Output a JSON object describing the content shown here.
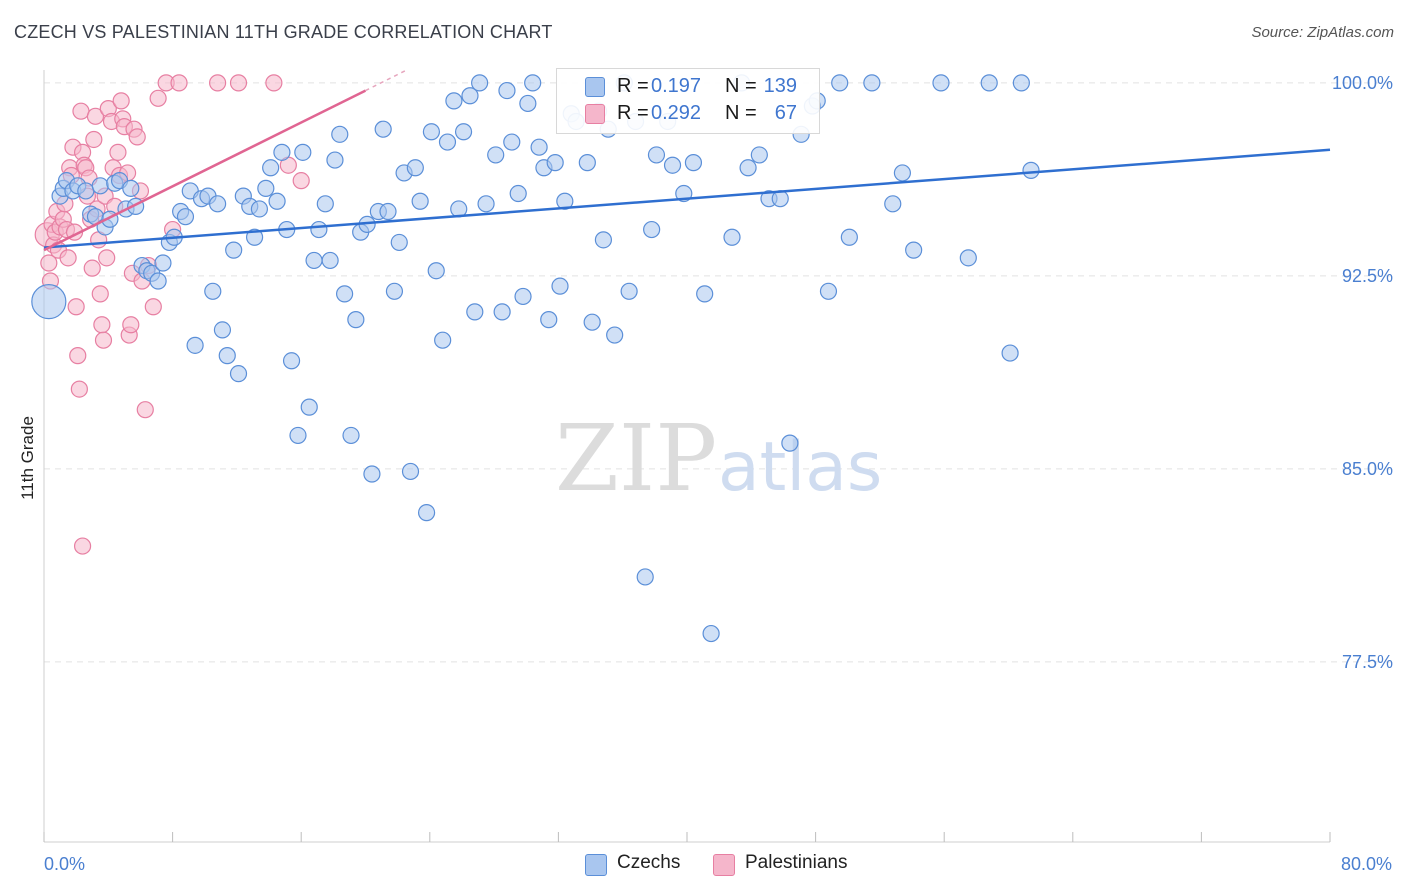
{
  "title": "CZECH VS PALESTINIAN 11TH GRADE CORRELATION CHART",
  "source": "Source: ZipAtlas.com",
  "watermark": {
    "zip": "ZIP",
    "atlas": "atlas"
  },
  "legend": {
    "czechs": {
      "r_label": "R =",
      "r_value": "0.197",
      "n_label": "N =",
      "n_value": "139"
    },
    "palestinians": {
      "r_label": "R =",
      "r_value": "0.292",
      "n_label": "N =",
      "n_value": "67"
    }
  },
  "bottom_legend": {
    "czechs": "Czechs",
    "palestinians": "Palestinians"
  },
  "colors": {
    "czech_fill": "#a9c6ef",
    "czech_stroke": "#5b8fd8",
    "czech_line": "#2f6fd0",
    "pal_fill": "#f5b6cb",
    "pal_stroke": "#e77fa2",
    "pal_line": "#e06592",
    "axis_text": "#4a7fd0",
    "grid": "#e2e2e2"
  },
  "chart_data": {
    "type": "scatter",
    "title": "CZECH VS PALESTINIAN 11TH GRADE CORRELATION CHART",
    "xlabel": "",
    "ylabel": "11th Grade",
    "xlim": [
      0,
      80
    ],
    "ylim": [
      70.5,
      100.5
    ],
    "x_tick_labels": [
      "0.0%",
      "80.0%"
    ],
    "y_ticks": [
      77.5,
      85.0,
      92.5,
      100.0
    ],
    "y_tick_labels": [
      "77.5%",
      "85.0%",
      "92.5%",
      "100.0%"
    ],
    "grid": true,
    "legend_position": "top-center",
    "series": [
      {
        "name": "Czechs",
        "r": 0.197,
        "n": 139,
        "trend": {
          "x": [
            0,
            80
          ],
          "y": [
            93.6,
            97.4
          ]
        },
        "points": [
          [
            0.3,
            91.5
          ],
          [
            1.0,
            95.6
          ],
          [
            1.2,
            95.9
          ],
          [
            1.4,
            96.2
          ],
          [
            1.8,
            95.8
          ],
          [
            2.1,
            96.0
          ],
          [
            2.6,
            95.8
          ],
          [
            2.9,
            94.9
          ],
          [
            3.2,
            94.8
          ],
          [
            3.5,
            96.0
          ],
          [
            3.8,
            94.4
          ],
          [
            4.1,
            94.7
          ],
          [
            4.4,
            96.1
          ],
          [
            4.7,
            96.2
          ],
          [
            5.1,
            95.1
          ],
          [
            5.4,
            95.9
          ],
          [
            5.7,
            95.2
          ],
          [
            6.1,
            92.9
          ],
          [
            6.4,
            92.7
          ],
          [
            6.7,
            92.6
          ],
          [
            7.1,
            92.3
          ],
          [
            7.4,
            93.0
          ],
          [
            7.8,
            93.8
          ],
          [
            8.1,
            94.0
          ],
          [
            8.5,
            95.0
          ],
          [
            8.8,
            94.8
          ],
          [
            9.1,
            95.8
          ],
          [
            9.4,
            89.8
          ],
          [
            9.8,
            95.5
          ],
          [
            10.2,
            95.6
          ],
          [
            10.5,
            91.9
          ],
          [
            10.8,
            95.3
          ],
          [
            11.1,
            90.4
          ],
          [
            11.4,
            89.4
          ],
          [
            11.8,
            93.5
          ],
          [
            12.1,
            88.7
          ],
          [
            12.4,
            95.6
          ],
          [
            12.8,
            95.2
          ],
          [
            13.1,
            94.0
          ],
          [
            13.4,
            95.1
          ],
          [
            13.8,
            95.9
          ],
          [
            14.1,
            96.7
          ],
          [
            14.5,
            95.4
          ],
          [
            14.8,
            97.3
          ],
          [
            15.1,
            94.3
          ],
          [
            15.4,
            89.2
          ],
          [
            15.8,
            86.3
          ],
          [
            16.1,
            97.3
          ],
          [
            16.5,
            87.4
          ],
          [
            16.8,
            93.1
          ],
          [
            17.1,
            94.3
          ],
          [
            17.5,
            95.3
          ],
          [
            17.8,
            93.1
          ],
          [
            18.1,
            97.0
          ],
          [
            18.4,
            98.0
          ],
          [
            18.7,
            91.8
          ],
          [
            19.1,
            86.3
          ],
          [
            19.4,
            90.8
          ],
          [
            19.7,
            94.2
          ],
          [
            20.1,
            94.5
          ],
          [
            20.4,
            84.8
          ],
          [
            20.8,
            95.0
          ],
          [
            21.1,
            98.2
          ],
          [
            21.4,
            95.0
          ],
          [
            21.8,
            91.9
          ],
          [
            22.1,
            93.8
          ],
          [
            22.4,
            96.5
          ],
          [
            22.8,
            84.9
          ],
          [
            23.1,
            96.7
          ],
          [
            23.4,
            95.4
          ],
          [
            23.8,
            83.3
          ],
          [
            24.1,
            98.1
          ],
          [
            24.4,
            92.7
          ],
          [
            24.8,
            90.0
          ],
          [
            25.1,
            97.7
          ],
          [
            25.5,
            99.3
          ],
          [
            25.8,
            95.1
          ],
          [
            26.1,
            98.1
          ],
          [
            26.5,
            99.5
          ],
          [
            26.8,
            91.1
          ],
          [
            27.1,
            100.0
          ],
          [
            27.5,
            95.3
          ],
          [
            28.1,
            97.2
          ],
          [
            28.5,
            91.1
          ],
          [
            28.8,
            99.7
          ],
          [
            29.1,
            97.7
          ],
          [
            29.5,
            95.7
          ],
          [
            29.8,
            91.7
          ],
          [
            30.1,
            99.2
          ],
          [
            30.4,
            100.0
          ],
          [
            30.8,
            97.5
          ],
          [
            31.1,
            96.7
          ],
          [
            31.4,
            90.8
          ],
          [
            31.8,
            96.9
          ],
          [
            32.1,
            92.1
          ],
          [
            32.4,
            95.4
          ],
          [
            32.8,
            98.8
          ],
          [
            33.1,
            98.5
          ],
          [
            33.8,
            96.9
          ],
          [
            34.1,
            90.7
          ],
          [
            34.5,
            98.9
          ],
          [
            34.8,
            93.9
          ],
          [
            35.1,
            98.2
          ],
          [
            35.5,
            90.2
          ],
          [
            36.1,
            100.0
          ],
          [
            36.4,
            91.9
          ],
          [
            36.8,
            98.5
          ],
          [
            37.4,
            80.8
          ],
          [
            37.8,
            94.3
          ],
          [
            38.1,
            97.2
          ],
          [
            38.8,
            98.5
          ],
          [
            39.1,
            96.8
          ],
          [
            39.8,
            95.7
          ],
          [
            40.4,
            96.9
          ],
          [
            41.1,
            91.8
          ],
          [
            41.5,
            78.6
          ],
          [
            42.8,
            94.0
          ],
          [
            43.4,
            100.0
          ],
          [
            43.8,
            96.7
          ],
          [
            44.5,
            97.2
          ],
          [
            45.1,
            95.5
          ],
          [
            45.8,
            95.5
          ],
          [
            46.4,
            86.0
          ],
          [
            47.1,
            98.0
          ],
          [
            47.8,
            99.1
          ],
          [
            48.1,
            99.3
          ],
          [
            48.8,
            91.9
          ],
          [
            49.5,
            100.0
          ],
          [
            50.1,
            94.0
          ],
          [
            51.5,
            100.0
          ],
          [
            52.8,
            95.3
          ],
          [
            53.4,
            96.5
          ],
          [
            54.1,
            93.5
          ],
          [
            55.8,
            100.0
          ],
          [
            57.5,
            93.2
          ],
          [
            58.8,
            100.0
          ],
          [
            60.1,
            89.5
          ],
          [
            60.8,
            100.0
          ],
          [
            61.4,
            96.6
          ]
        ]
      },
      {
        "name": "Palestinians",
        "r": 0.292,
        "n": 67,
        "trend": {
          "x": [
            0,
            20
          ],
          "y": [
            93.5,
            99.7
          ]
        },
        "points": [
          [
            0.2,
            94.1
          ],
          [
            0.3,
            93.0
          ],
          [
            0.4,
            92.3
          ],
          [
            0.5,
            94.5
          ],
          [
            0.6,
            93.7
          ],
          [
            0.7,
            94.2
          ],
          [
            0.8,
            95.0
          ],
          [
            0.9,
            93.5
          ],
          [
            1.0,
            94.4
          ],
          [
            1.2,
            94.7
          ],
          [
            1.3,
            95.3
          ],
          [
            1.4,
            94.3
          ],
          [
            1.5,
            93.2
          ],
          [
            1.6,
            96.7
          ],
          [
            1.7,
            96.4
          ],
          [
            1.8,
            97.5
          ],
          [
            1.9,
            94.2
          ],
          [
            2.0,
            91.3
          ],
          [
            2.1,
            89.4
          ],
          [
            2.2,
            88.1
          ],
          [
            2.3,
            98.9
          ],
          [
            2.4,
            97.3
          ],
          [
            2.5,
            96.8
          ],
          [
            2.6,
            96.7
          ],
          [
            2.7,
            95.6
          ],
          [
            2.8,
            96.3
          ],
          [
            2.9,
            94.7
          ],
          [
            3.0,
            92.8
          ],
          [
            3.1,
            97.8
          ],
          [
            3.2,
            98.7
          ],
          [
            3.3,
            95.1
          ],
          [
            3.4,
            93.9
          ],
          [
            3.5,
            91.8
          ],
          [
            3.6,
            90.6
          ],
          [
            3.7,
            90.0
          ],
          [
            3.8,
            95.6
          ],
          [
            3.9,
            93.2
          ],
          [
            4.0,
            99.0
          ],
          [
            4.2,
            98.5
          ],
          [
            4.3,
            96.7
          ],
          [
            4.4,
            95.2
          ],
          [
            4.6,
            97.3
          ],
          [
            4.7,
            96.4
          ],
          [
            4.8,
            99.3
          ],
          [
            4.9,
            98.6
          ],
          [
            5.0,
            98.3
          ],
          [
            5.2,
            96.5
          ],
          [
            5.3,
            90.2
          ],
          [
            5.4,
            90.6
          ],
          [
            5.5,
            92.6
          ],
          [
            5.6,
            98.2
          ],
          [
            5.8,
            97.9
          ],
          [
            6.0,
            95.8
          ],
          [
            6.1,
            92.3
          ],
          [
            6.3,
            87.3
          ],
          [
            6.5,
            92.9
          ],
          [
            6.8,
            91.3
          ],
          [
            7.1,
            99.4
          ],
          [
            7.6,
            100.0
          ],
          [
            8.0,
            94.3
          ],
          [
            8.4,
            100.0
          ],
          [
            10.8,
            100.0
          ],
          [
            12.1,
            100.0
          ],
          [
            14.3,
            100.0
          ],
          [
            15.2,
            96.8
          ],
          [
            16.0,
            96.2
          ],
          [
            2.4,
            82.0
          ]
        ]
      }
    ]
  }
}
